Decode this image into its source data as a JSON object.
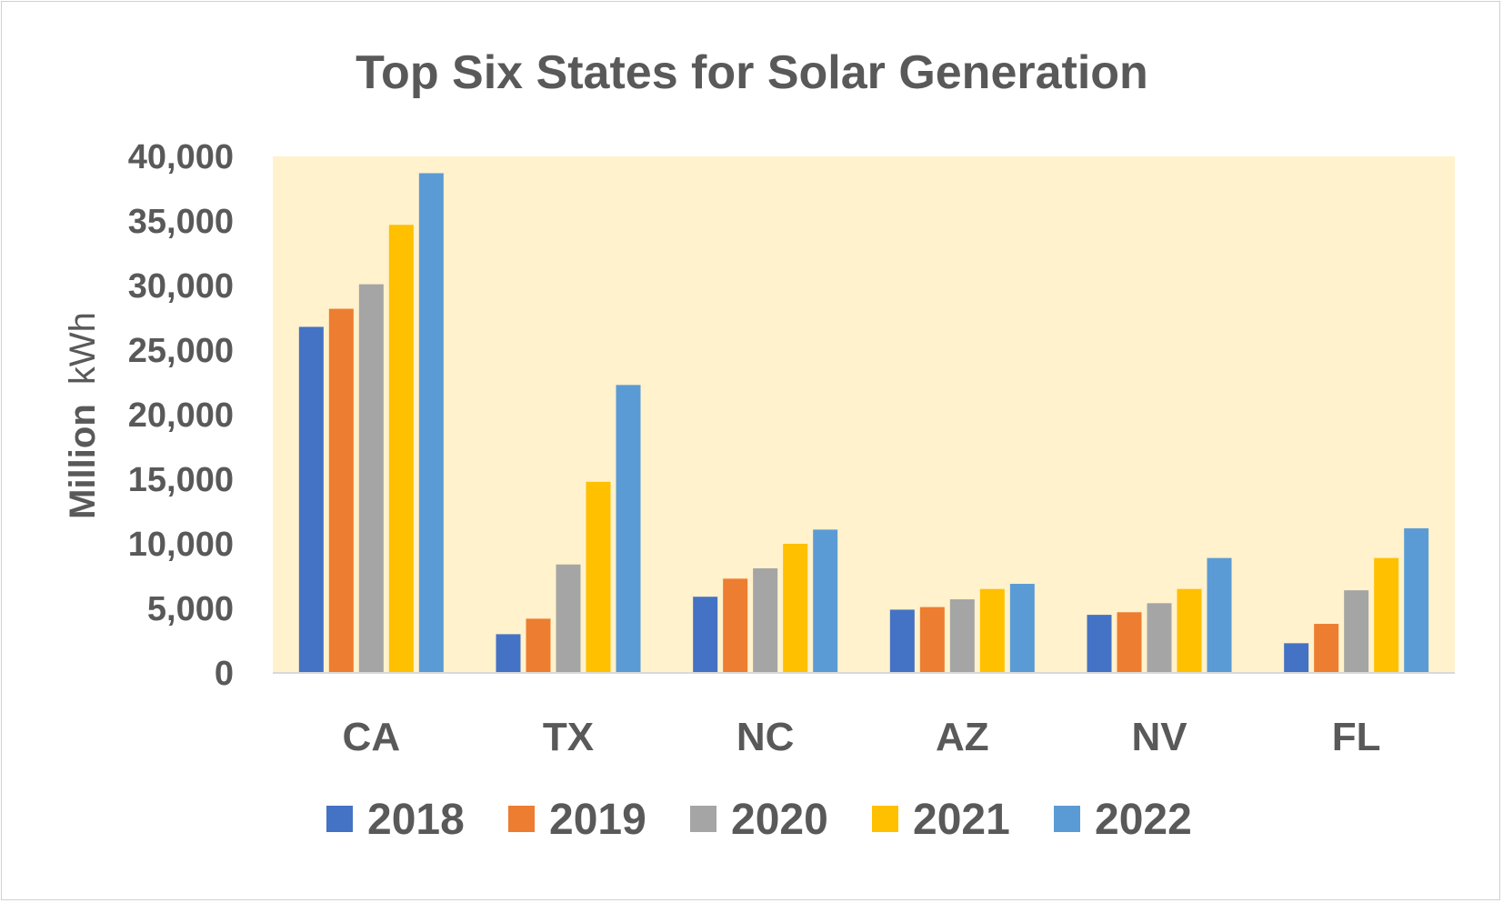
{
  "chart_data": {
    "type": "bar",
    "title": "Top Six States for Solar Generation",
    "ylabel_bold": "Million",
    "ylabel_rest": "kWh",
    "categories": [
      "CA",
      "TX",
      "NC",
      "AZ",
      "NV",
      "FL"
    ],
    "ylim": [
      0,
      40000
    ],
    "yticks": [
      0,
      5000,
      10000,
      15000,
      20000,
      25000,
      30000,
      35000,
      40000
    ],
    "ytick_labels": [
      "0",
      "5,000",
      "10,000",
      "15,000",
      "20,000",
      "25,000",
      "30,000",
      "35,000",
      "40,000"
    ],
    "grid": false,
    "legend_position": "bottom",
    "plot_background": "#fff2cc",
    "series": [
      {
        "name": "2018",
        "color": "#4472c4",
        "values": [
          26800,
          3000,
          5900,
          4900,
          4500,
          2300
        ]
      },
      {
        "name": "2019",
        "color": "#ed7d31",
        "values": [
          28200,
          4200,
          7300,
          5100,
          4700,
          3800
        ]
      },
      {
        "name": "2020",
        "color": "#a5a5a5",
        "values": [
          30100,
          8400,
          8100,
          5700,
          5400,
          6400
        ]
      },
      {
        "name": "2021",
        "color": "#ffc000",
        "values": [
          34700,
          14800,
          10000,
          6500,
          6500,
          8900
        ]
      },
      {
        "name": "2022",
        "color": "#5b9bd5",
        "values": [
          38700,
          22300,
          11100,
          6900,
          8900,
          11200
        ]
      }
    ]
  }
}
